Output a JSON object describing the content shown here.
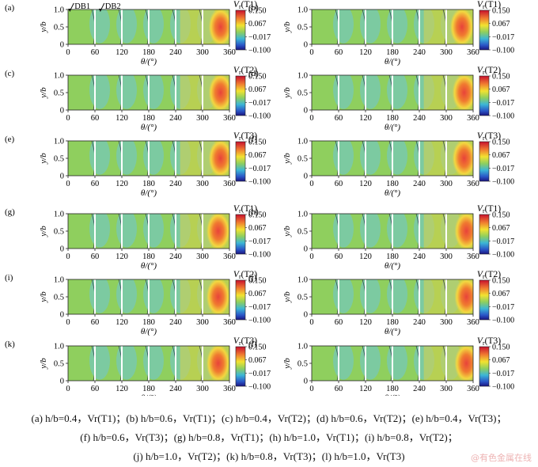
{
  "chart_data": [
    {
      "id": "a",
      "label": "(a)",
      "title": "Vr(T1)",
      "title_main": "V",
      "title_sub": "r",
      "title_tail": "(T1)",
      "type": "heatmap",
      "xlabel": "θ/(°)",
      "ylabel": "y/b",
      "x_ticks": [
        "0",
        "60",
        "120",
        "180",
        "240",
        "300",
        "360"
      ],
      "y_ticks": [
        "0",
        "0.5",
        "1.0"
      ],
      "xlim": [
        0,
        360
      ],
      "ylim": [
        0,
        1.0
      ],
      "colorbar": {
        "ticks": [
          "0.150",
          "0.067",
          "−0.017",
          "−0.100"
        ],
        "min": -0.1,
        "max": 0.15
      },
      "hot_spot_theta": 340,
      "partitions": [
        60,
        120,
        180,
        240,
        300
      ],
      "annotations": [
        "DB1",
        "DB2"
      ]
    },
    {
      "id": "b",
      "label": "(b)",
      "title": "Vr(T1)",
      "title_main": "V",
      "title_sub": "r",
      "title_tail": "(T1)",
      "type": "heatmap",
      "xlabel": "θ/(°)",
      "ylabel": "y/b",
      "x_ticks": [
        "0",
        "60",
        "120",
        "180",
        "240",
        "300",
        "360"
      ],
      "y_ticks": [
        "0",
        "0.5",
        "1.0"
      ],
      "xlim": [
        0,
        360
      ],
      "ylim": [
        0,
        1.0
      ],
      "colorbar": {
        "ticks": [
          "0.150",
          "0.067",
          "−0.017",
          "−0.100"
        ],
        "min": -0.1,
        "max": 0.15
      },
      "hot_spot_theta": 335,
      "partitions": [
        60,
        120,
        180,
        240,
        300
      ]
    },
    {
      "id": "c",
      "label": "(c)",
      "title": "Vr(T2)",
      "title_main": "V",
      "title_sub": "r",
      "title_tail": "(T2)",
      "type": "heatmap",
      "xlabel": "θ/(°)",
      "ylabel": "y/b",
      "x_ticks": [
        "0",
        "60",
        "120",
        "180",
        "240",
        "300",
        "360"
      ],
      "y_ticks": [
        "0",
        "0.5",
        "1.0"
      ],
      "xlim": [
        0,
        360
      ],
      "ylim": [
        0,
        1.0
      ],
      "colorbar": {
        "ticks": [
          "0.150",
          "0.067",
          "−0.017",
          "−0.100"
        ],
        "min": -0.1,
        "max": 0.15
      },
      "hot_spot_theta": 340,
      "partitions": [
        60,
        120,
        180,
        240,
        300
      ]
    },
    {
      "id": "d",
      "label": "(d)",
      "title": "Vr(T2)",
      "title_main": "V",
      "title_sub": "r",
      "title_tail": "(T2)",
      "type": "heatmap",
      "xlabel": "θ/(°)",
      "ylabel": "y/b",
      "x_ticks": [
        "0",
        "60",
        "120",
        "180",
        "240",
        "300",
        "360"
      ],
      "y_ticks": [
        "0",
        "0.5",
        "1.0"
      ],
      "xlim": [
        0,
        360
      ],
      "ylim": [
        0,
        1.0
      ],
      "colorbar": {
        "ticks": [
          "0.150",
          "0.067",
          "−0.017",
          "−0.100"
        ],
        "min": -0.1,
        "max": 0.15
      },
      "hot_spot_theta": 340,
      "partitions": [
        60,
        120,
        180,
        240,
        300
      ]
    },
    {
      "id": "e",
      "label": "(e)",
      "title": "Vr(T3)",
      "title_main": "V",
      "title_sub": "r",
      "title_tail": "(T3)",
      "type": "heatmap",
      "xlabel": "θ/(°)",
      "ylabel": "y/b",
      "x_ticks": [
        "0",
        "60",
        "120",
        "180",
        "240",
        "300",
        "360"
      ],
      "y_ticks": [
        "0",
        "0.5",
        "1.0"
      ],
      "xlim": [
        0,
        360
      ],
      "ylim": [
        0,
        1.0
      ],
      "colorbar": {
        "ticks": [
          "0.150",
          "0.067",
          "−0.017",
          "−0.100"
        ],
        "min": -0.1,
        "max": 0.15
      },
      "hot_spot_theta": 340,
      "partitions": [
        60,
        120,
        180,
        240,
        300
      ]
    },
    {
      "id": "f",
      "label": "(f)",
      "title": "Vr(T3)",
      "title_main": "V",
      "title_sub": "r",
      "title_tail": "(T3)",
      "type": "heatmap",
      "xlabel": "θ/(°)",
      "ylabel": "y/b",
      "x_ticks": [
        "0",
        "60",
        "120",
        "180",
        "240",
        "300",
        "360"
      ],
      "y_ticks": [
        "0",
        "0.5",
        "1.0"
      ],
      "xlim": [
        0,
        360
      ],
      "ylim": [
        0,
        1.0
      ],
      "colorbar": {
        "ticks": [
          "0.150",
          "0.067",
          "−0.017",
          "−0.100"
        ],
        "min": -0.1,
        "max": 0.15
      },
      "hot_spot_theta": 340,
      "partitions": [
        60,
        120,
        180,
        240,
        300
      ]
    },
    {
      "id": "g",
      "label": "(g)",
      "title": "Vr(T1)",
      "title_main": "V",
      "title_sub": "r",
      "title_tail": "(T1)",
      "type": "heatmap",
      "xlabel": "θ/(°)",
      "ylabel": "y/b",
      "x_ticks": [
        "0",
        "60",
        "120",
        "180",
        "240",
        "300",
        "360"
      ],
      "y_ticks": [
        "0",
        "0.5",
        "1.0"
      ],
      "xlim": [
        0,
        360
      ],
      "ylim": [
        0,
        1.0
      ],
      "colorbar": {
        "ticks": [
          "0.150",
          "0.067",
          "−0.017",
          "−0.100"
        ],
        "min": -0.1,
        "max": 0.15
      },
      "hot_spot_theta": 335,
      "partitions": [
        60,
        120,
        180,
        240,
        300
      ]
    },
    {
      "id": "h",
      "label": "(h)",
      "title": "Vr(T1)",
      "title_main": "V",
      "title_sub": "r",
      "title_tail": "(T1)",
      "type": "heatmap",
      "xlabel": "θ/(°)",
      "ylabel": "y/b",
      "x_ticks": [
        "0",
        "60",
        "120",
        "180",
        "240",
        "300",
        "360"
      ],
      "y_ticks": [
        "0",
        "0.5",
        "1.0"
      ],
      "xlim": [
        0,
        360
      ],
      "ylim": [
        0,
        1.0
      ],
      "colorbar": {
        "ticks": [
          "0.150",
          "0.067",
          "−0.017",
          "−0.100"
        ],
        "min": -0.1,
        "max": 0.15
      },
      "hot_spot_theta": 345,
      "partitions": [
        60,
        120,
        180,
        240,
        300
      ]
    },
    {
      "id": "i",
      "label": "(i)",
      "title": "Vr(T2)",
      "title_main": "V",
      "title_sub": "r",
      "title_tail": "(T2)",
      "type": "heatmap",
      "xlabel": "θ/(°)",
      "ylabel": "y/b",
      "x_ticks": [
        "0",
        "60",
        "120",
        "180",
        "240",
        "300",
        "360"
      ],
      "y_ticks": [
        "0",
        "0.5",
        "1.0"
      ],
      "xlim": [
        0,
        360
      ],
      "ylim": [
        0,
        1.0
      ],
      "colorbar": {
        "ticks": [
          "0.150",
          "0.067",
          "−0.017",
          "−0.100"
        ],
        "min": -0.1,
        "max": 0.15
      },
      "hot_spot_theta": 335,
      "partitions": [
        60,
        120,
        180,
        240,
        300
      ]
    },
    {
      "id": "j",
      "label": "(j)",
      "title": "Vr(T2)",
      "title_main": "V",
      "title_sub": "r",
      "title_tail": "(T2)",
      "type": "heatmap",
      "xlabel": "θ/(°)",
      "ylabel": "y/b",
      "x_ticks": [
        "0",
        "60",
        "120",
        "180",
        "240",
        "300",
        "360"
      ],
      "y_ticks": [
        "0",
        "0.5",
        "1.0"
      ],
      "xlim": [
        0,
        360
      ],
      "ylim": [
        0,
        1.0
      ],
      "colorbar": {
        "ticks": [
          "0.150",
          "0.067",
          "−0.017",
          "−0.100"
        ],
        "min": -0.1,
        "max": 0.15
      },
      "hot_spot_theta": 345,
      "partitions": [
        60,
        120,
        180,
        240,
        300
      ]
    },
    {
      "id": "k",
      "label": "(k)",
      "title": "Vr(T3)",
      "title_main": "V",
      "title_sub": "r",
      "title_tail": "(T3)",
      "type": "heatmap",
      "xlabel": "θ/(°)",
      "ylabel": "y/b",
      "x_ticks": [
        "0",
        "60",
        "120",
        "180",
        "240",
        "300",
        "360"
      ],
      "y_ticks": [
        "0",
        "0.5",
        "1.0"
      ],
      "xlim": [
        0,
        360
      ],
      "ylim": [
        0,
        1.0
      ],
      "colorbar": {
        "ticks": [
          "0.150",
          "0.067",
          "−0.017",
          "−0.100"
        ],
        "min": -0.1,
        "max": 0.15
      },
      "hot_spot_theta": 335,
      "partitions": [
        60,
        120,
        180,
        240,
        300
      ]
    },
    {
      "id": "l",
      "label": "(l)",
      "title": "Vr(T3)",
      "title_main": "V",
      "title_sub": "r",
      "title_tail": "(T3)",
      "type": "heatmap",
      "xlabel": "θ/(°)",
      "ylabel": "y/b",
      "x_ticks": [
        "0",
        "60",
        "120",
        "180",
        "240",
        "300",
        "360"
      ],
      "y_ticks": [
        "0",
        "0.5",
        "1.0"
      ],
      "xlim": [
        0,
        360
      ],
      "ylim": [
        0,
        1.0
      ],
      "colorbar": {
        "ticks": [
          "0.150",
          "0.067",
          "−0.017",
          "−0.100"
        ],
        "min": -0.1,
        "max": 0.15
      },
      "hot_spot_theta": 345,
      "partitions": [
        60,
        120,
        180,
        240,
        300
      ]
    }
  ],
  "caption": {
    "line1": "(a) h/b=0.4，Vr(T1)；(b) h/b=0.6，Vr(T1)；(c) h/b=0.4，Vr(T2)；(d) h/b=0.6，Vr(T2)；(e) h/b=0.4，Vr(T3)；",
    "line2": "(f) h/b=0.6，Vr(T3)；(g) h/b=0.8，Vr(T1)；(h) h/b=1.0，Vr(T1)；(i) h/b=0.8，Vr(T2)；",
    "line3": "(j) h/b=1.0，Vr(T2)；(k) h/b=0.8，Vr(T3)；(l) h/b=1.0，Vr(T3)"
  },
  "watermark": "@有色金属在线",
  "colors": {
    "field": "#8fcf5e",
    "cool": "#6ec6d8",
    "warm": "#d9d24a",
    "hot": "#f0a43a",
    "hottest": "#e8433a",
    "contour": "#1a1a40",
    "partition": "#ffffff"
  }
}
